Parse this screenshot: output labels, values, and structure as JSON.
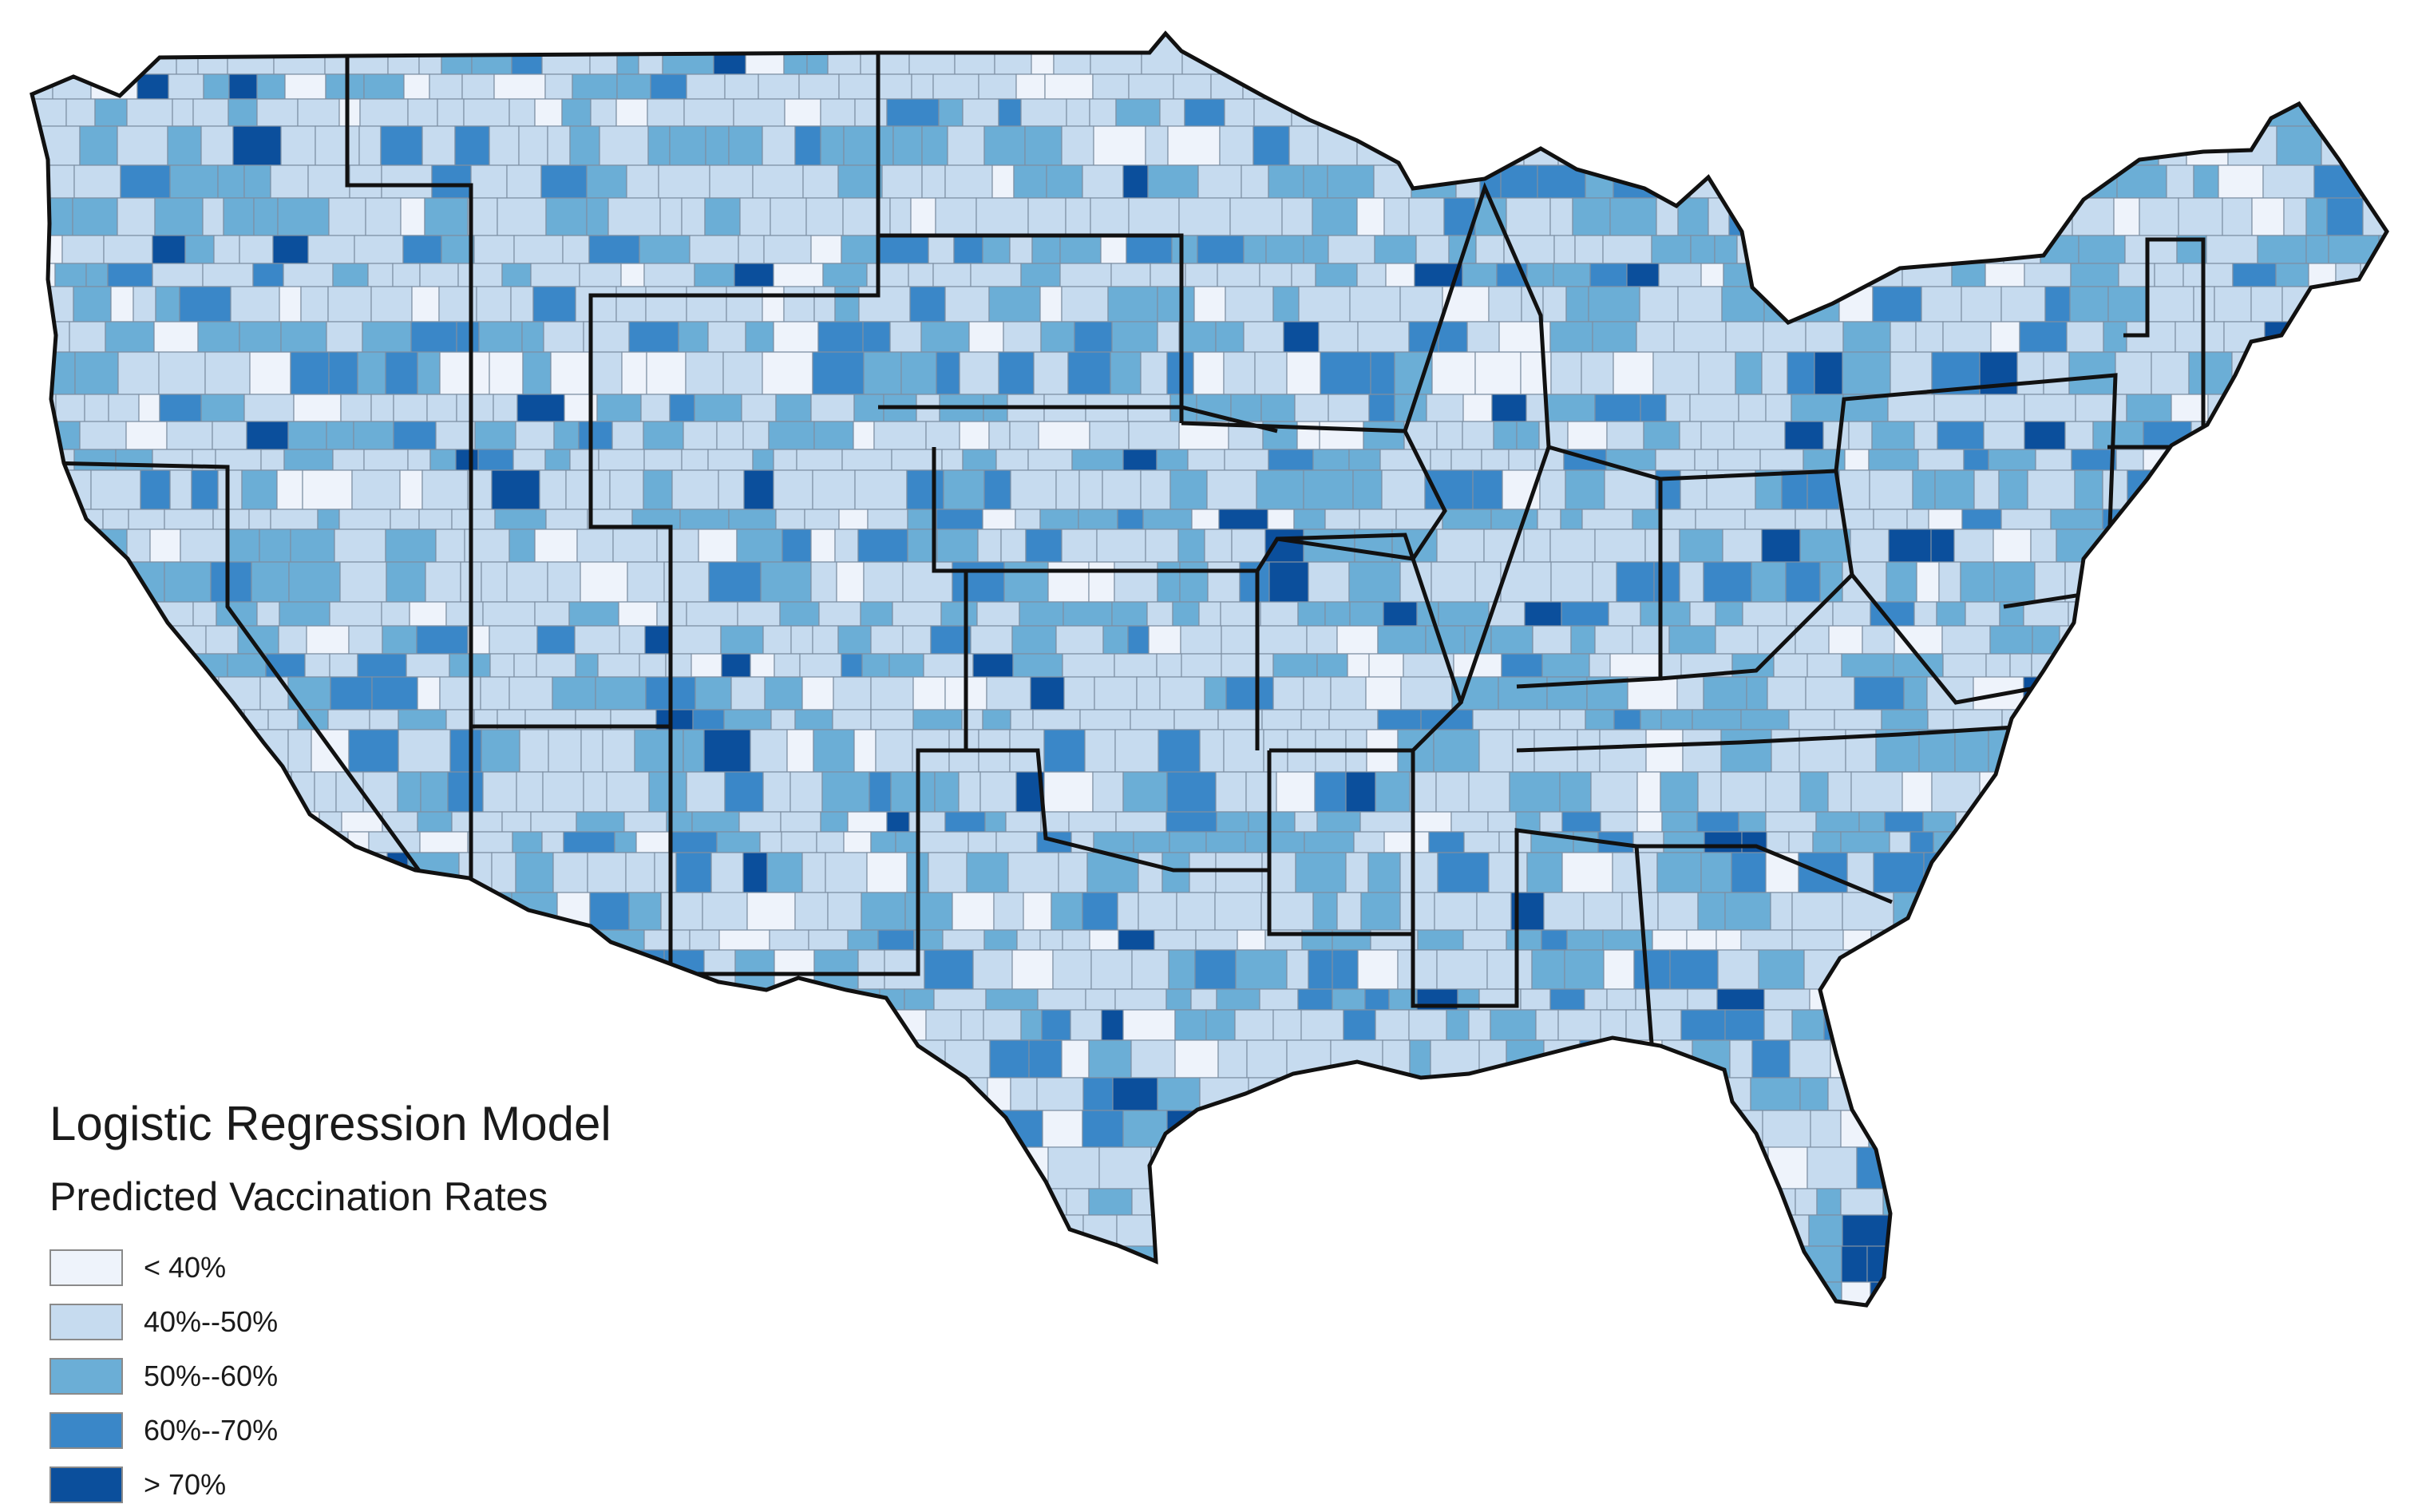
{
  "legend": {
    "title": "Logistic Regression Model",
    "subtitle": "Predicted Vaccination Rates",
    "classes": [
      {
        "label": "< 40%",
        "color": "#eef3fb"
      },
      {
        "label": "40%--50%",
        "color": "#c6dbef"
      },
      {
        "label": "50%--60%",
        "color": "#6baed6"
      },
      {
        "label": "60%--70%",
        "color": "#3a87c8"
      },
      {
        "label": "> 70%",
        "color": "#0b4f9c"
      }
    ]
  },
  "colors": {
    "county_border": "#7d8fa3",
    "state_border": "#111111",
    "background": "#ffffff"
  }
}
